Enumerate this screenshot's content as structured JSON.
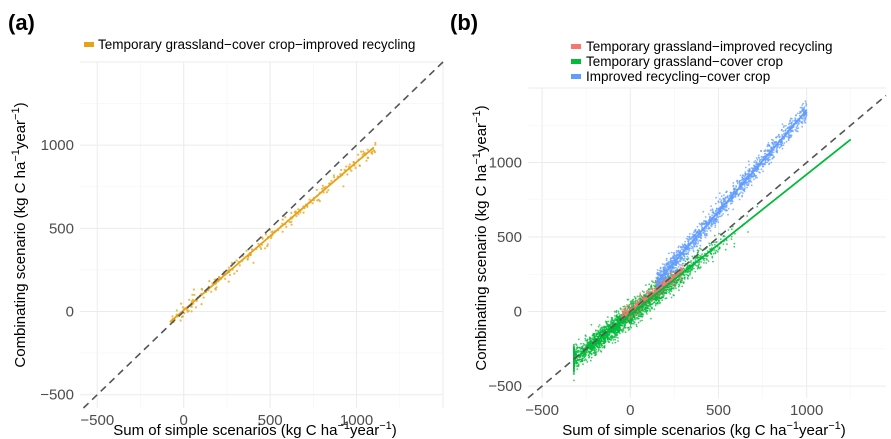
{
  "chart_data": [
    {
      "type": "scatter",
      "panel_label": "(a)",
      "title": "",
      "xlabel": {
        "main": "Sum of simple scenarios (kg C ha",
        "sup1": "−1",
        "mid": "year",
        "sup2": "−1",
        "end": ")"
      },
      "ylabel": {
        "main": "Combinating scenario (kg C ha",
        "sup1": "−1",
        "mid": "year",
        "sup2": "−1",
        "end": ")"
      },
      "xlim": [
        -600,
        1500
      ],
      "ylim": [
        -580,
        1500
      ],
      "xticks": [
        -500,
        0,
        500,
        1000
      ],
      "yticks": [
        -500,
        0,
        500,
        1000
      ],
      "xtick_labels": [
        "−500",
        "0",
        "500",
        "1000"
      ],
      "ytick_labels": [
        "−500",
        "0",
        "500",
        "1000"
      ],
      "grid": true,
      "identity_line": true,
      "legend_position": "top",
      "series": [
        {
          "name": "Temporary grassland−cover crop−improved recycling",
          "color": "#E6A317",
          "fit": {
            "slope": 0.89,
            "intercept": 8,
            "x_range": [
              -80,
              1100
            ]
          },
          "x_range": [
            -70,
            1110
          ],
          "n_points": 220,
          "spread": 22
        }
      ]
    },
    {
      "type": "scatter",
      "panel_label": "(b)",
      "title": "",
      "xlabel": {
        "main": "Sum of simple scenarios (kg C ha",
        "sup1": "−1",
        "mid": "year",
        "sup2": "−1",
        "end": ")"
      },
      "ylabel": {
        "main": "Combinating scenario (kg C ha",
        "sup1": "−1",
        "mid": "year",
        "sup2": "−1",
        "end": ")"
      },
      "xlim": [
        -580,
        1450
      ],
      "ylim": [
        -580,
        1500
      ],
      "xticks": [
        -500,
        0,
        500,
        1000
      ],
      "yticks": [
        -500,
        0,
        500,
        1000
      ],
      "xtick_labels": [
        "−500",
        "0",
        "500",
        "1000"
      ],
      "ytick_labels": [
        "−500",
        "0",
        "500",
        "1000"
      ],
      "grid": true,
      "identity_line": true,
      "legend_position": "top",
      "series": [
        {
          "name": "Temporary grassland−improved recycling",
          "color": "#F8766D",
          "fit": {
            "slope": 0.92,
            "intercept": 5,
            "x_range": [
              -50,
              300
            ]
          },
          "x_range": [
            -50,
            300
          ],
          "n_points": 260,
          "spread": 25
        },
        {
          "name": "Temporary grassland−cover crop",
          "color": "#00BA38",
          "fit": {
            "slope": 0.94,
            "intercept": -20,
            "x_range": [
              -320,
              1250
            ]
          },
          "x_range": [
            -320,
            720
          ],
          "n_points": 2600,
          "spread": 38
        },
        {
          "name": "Improved recycling−cover crop",
          "color": "#619CFF",
          "fit": {
            "slope": 1.36,
            "intercept": -10,
            "x_range": [
              150,
              1000
            ]
          },
          "x_range": [
            150,
            1000
          ],
          "n_points": 1500,
          "spread": 35
        }
      ]
    }
  ]
}
